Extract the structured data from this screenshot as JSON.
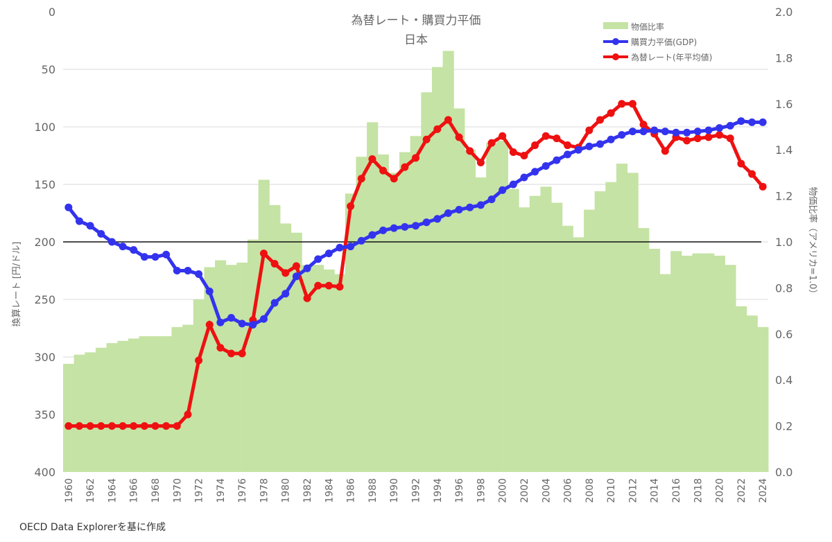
{
  "chart_data": {
    "type": "bar+line",
    "title": "為替レート・購買力平価",
    "subtitle": "日本",
    "ylabel_left": "換算レート [円/ドル]",
    "ylabel_right": "物価比率（アメリカ=1.0）",
    "ylim_left": [
      400,
      0
    ],
    "ylim_right": [
      0,
      2.0
    ],
    "left_ticks": [
      0,
      50,
      100,
      150,
      200,
      250,
      300,
      350,
      400
    ],
    "right_ticks": [
      "2.0",
      "1.8",
      "1.6",
      "1.4",
      "1.2",
      "1.0",
      "0.8",
      "0.6",
      "0.4",
      "0.2",
      "0.0"
    ],
    "reference_line_left": 200,
    "grid": true,
    "legend_position": "top-right",
    "x": [
      1960,
      1961,
      1962,
      1963,
      1964,
      1965,
      1966,
      1967,
      1968,
      1969,
      1970,
      1971,
      1972,
      1973,
      1974,
      1975,
      1976,
      1977,
      1978,
      1979,
      1980,
      1981,
      1982,
      1983,
      1984,
      1985,
      1986,
      1987,
      1988,
      1989,
      1990,
      1991,
      1992,
      1993,
      1994,
      1995,
      1996,
      1997,
      1998,
      1999,
      2000,
      2001,
      2002,
      2003,
      2004,
      2005,
      2006,
      2007,
      2008,
      2009,
      2010,
      2011,
      2012,
      2013,
      2014,
      2015,
      2016,
      2017,
      2018,
      2019,
      2020,
      2021,
      2022,
      2023,
      2024
    ],
    "series": [
      {
        "name": "物価比率",
        "axis": "right",
        "kind": "bar",
        "color": "#c5e3a4",
        "values": [
          0.47,
          0.51,
          0.52,
          0.54,
          0.56,
          0.57,
          0.58,
          0.59,
          0.59,
          0.59,
          0.63,
          0.64,
          0.75,
          0.89,
          0.92,
          0.9,
          0.91,
          1.01,
          1.27,
          1.16,
          1.08,
          1.04,
          0.9,
          0.9,
          0.88,
          0.86,
          1.21,
          1.37,
          1.52,
          1.38,
          1.3,
          1.39,
          1.46,
          1.65,
          1.76,
          1.83,
          1.58,
          1.4,
          1.28,
          1.43,
          1.44,
          1.23,
          1.15,
          1.2,
          1.24,
          1.17,
          1.07,
          1.02,
          1.14,
          1.22,
          1.26,
          1.34,
          1.3,
          1.06,
          0.97,
          0.86,
          0.96,
          0.94,
          0.95,
          0.95,
          0.94,
          0.9,
          0.72,
          0.68,
          0.63
        ]
      },
      {
        "name": "購買力平価(GDP)",
        "axis": "left",
        "kind": "line",
        "color": "#3333ee",
        "values": [
          170,
          182,
          186,
          193,
          200,
          204,
          207,
          213,
          213,
          211,
          225,
          225,
          228,
          243,
          270,
          266,
          271,
          272,
          267,
          253,
          245,
          230,
          223,
          215,
          210,
          205,
          204,
          199,
          194,
          190,
          188,
          187,
          186,
          183,
          180,
          175,
          172,
          170,
          168,
          163,
          155,
          150,
          144,
          139,
          134,
          129,
          124,
          120,
          117,
          115,
          111,
          107,
          104,
          104,
          103,
          104,
          105,
          105,
          104,
          103,
          101,
          99,
          95,
          96,
          96
        ]
      },
      {
        "name": "為替レート(年平均値)",
        "axis": "left",
        "kind": "line",
        "color": "#ee1111",
        "values": [
          360,
          360,
          360,
          360,
          360,
          360,
          360,
          360,
          360,
          360,
          360,
          350,
          303,
          272,
          292,
          297,
          297,
          268,
          210,
          219,
          227,
          221,
          249,
          238,
          238,
          239,
          169,
          145,
          128,
          138,
          145,
          135,
          127,
          111,
          102,
          94,
          109,
          121,
          131,
          114,
          108,
          122,
          125,
          116,
          108,
          110,
          116,
          118,
          103,
          94,
          88,
          80,
          80,
          98,
          106,
          121,
          109,
          112,
          110,
          109,
          107,
          110,
          132,
          141,
          152
        ]
      }
    ]
  },
  "footer": "OECD Data Explorerを基に作成"
}
